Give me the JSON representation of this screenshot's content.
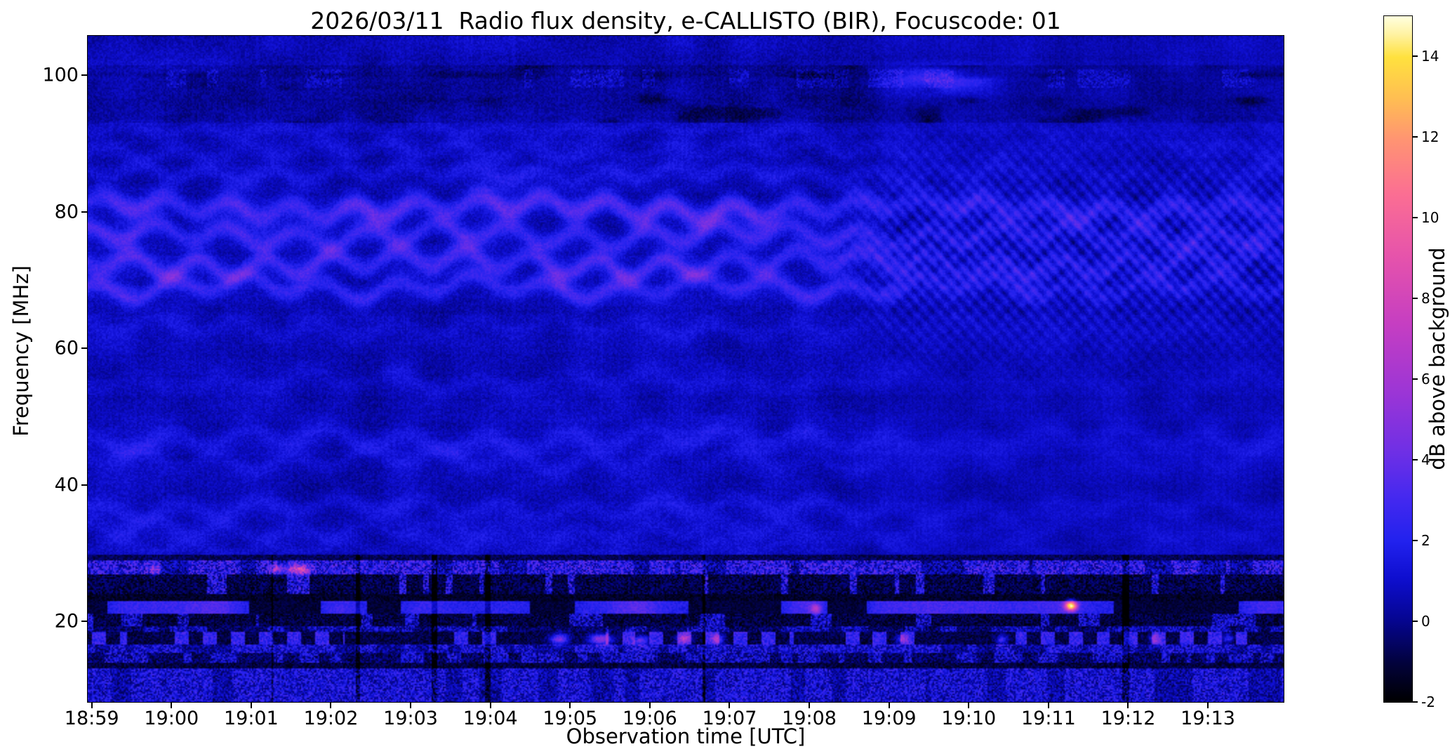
{
  "figure": {
    "title": "2026/03/11  Radio flux density, e-CALLISTO (BIR), Focuscode: 01",
    "date": "2026/03/11",
    "instrument": "e-CALLISTO (BIR)",
    "focuscode": "01"
  },
  "chart_data": {
    "type": "heatmap",
    "title": "2026/03/11  Radio flux density, e-CALLISTO (BIR), Focuscode: 01",
    "xlabel": "Observation time [UTC]",
    "ylabel": "Frequency [MHz]",
    "x_ticks": [
      "18:59",
      "19:00",
      "19:01",
      "19:02",
      "19:03",
      "19:04",
      "19:05",
      "19:06",
      "19:07",
      "19:08",
      "19:09",
      "19:10",
      "19:11",
      "19:12",
      "19:13"
    ],
    "x_tick_interval_s": 60,
    "time_range_s": [
      -3,
      897
    ],
    "y_ticks": [
      20,
      40,
      60,
      80,
      100
    ],
    "freq_range_mhz": [
      8.2,
      105.8
    ],
    "grid": false,
    "colorbar": {
      "label": "dB above background",
      "ticks": [
        -2,
        0,
        2,
        4,
        6,
        8,
        10,
        12,
        14
      ],
      "vmin": -2,
      "vmax": 15,
      "colormap": "gnuplot2",
      "stops": [
        {
          "p": 0.0,
          "c": "#000000"
        },
        {
          "p": 0.055,
          "c": "#02023a"
        },
        {
          "p": 0.118,
          "c": "#05058f"
        },
        {
          "p": 0.18,
          "c": "#0e0ecf"
        },
        {
          "p": 0.235,
          "c": "#2222ee"
        },
        {
          "p": 0.3,
          "c": "#4629ef"
        },
        {
          "p": 0.36,
          "c": "#6c2fe6"
        },
        {
          "p": 0.45,
          "c": "#9b35d6"
        },
        {
          "p": 0.55,
          "c": "#c53ec2"
        },
        {
          "p": 0.65,
          "c": "#e653ab"
        },
        {
          "p": 0.74,
          "c": "#fb6e93"
        },
        {
          "p": 0.82,
          "c": "#ff9472"
        },
        {
          "p": 0.88,
          "c": "#ffbe52"
        },
        {
          "p": 0.94,
          "c": "#ffe13e"
        },
        {
          "p": 0.975,
          "c": "#fff3a6"
        },
        {
          "p": 1.0,
          "c": "#ffffdf"
        }
      ]
    },
    "render": {
      "background_db": 0.6,
      "bands": [
        {
          "f": 80.6,
          "p": 2.6,
          "w": 1.15,
          "a1": 1.1,
          "n1": 19,
          "ph1": 0.5,
          "a2": 0.7,
          "n2": 3,
          "ph2": 1.2
        },
        {
          "f": 76.6,
          "p": 2.1,
          "w": 1.0,
          "a1": 1.2,
          "n1": 17,
          "ph1": 2.1,
          "a2": 0.6,
          "n2": 4,
          "ph2": 0.3
        },
        {
          "f": 72.5,
          "p": 2.2,
          "w": 1.0,
          "a1": 1.3,
          "n1": 18,
          "ph1": 4.0,
          "a2": 0.8,
          "n2": 3,
          "ph2": 2.5
        },
        {
          "f": 69.0,
          "p": 1.9,
          "w": 0.95,
          "a1": 1.1,
          "n1": 16,
          "ph1": 1.0,
          "a2": 0.7,
          "n2": 5,
          "ph2": 4.0
        },
        {
          "f": 85.6,
          "p": 0.85,
          "w": 0.9,
          "a1": 0.9,
          "n1": 18,
          "ph1": 3.2,
          "a2": 0.5,
          "n2": 4,
          "ph2": 1.0
        },
        {
          "f": 88.9,
          "p": 0.7,
          "w": 0.85,
          "a1": 0.8,
          "n1": 17,
          "ph1": 0.2,
          "a2": 0.5,
          "n2": 3,
          "ph2": 3.3
        },
        {
          "f": 92.1,
          "p": 0.55,
          "w": 0.8,
          "a1": 0.8,
          "n1": 16,
          "ph1": 5.0,
          "a2": 0.4,
          "n2": 4,
          "ph2": 2.0
        },
        {
          "f": 63.0,
          "p": 0.55,
          "w": 0.95,
          "a1": 1.0,
          "n1": 15,
          "ph1": 2.7,
          "a2": 0.5,
          "n2": 3,
          "ph2": 0.8
        },
        {
          "f": 55.2,
          "p": 0.5,
          "w": 1.0,
          "a1": 1.0,
          "n1": 14,
          "ph1": 4.4,
          "a2": 0.6,
          "n2": 4,
          "ph2": 2.9
        },
        {
          "f": 46.6,
          "p": 0.85,
          "w": 1.1,
          "a1": 1.1,
          "n1": 15,
          "ph1": 1.8,
          "a2": 0.7,
          "n2": 3,
          "ph2": 4.6
        },
        {
          "f": 43.6,
          "p": 0.65,
          "w": 0.95,
          "a1": 1.0,
          "n1": 16,
          "ph1": 3.6,
          "a2": 0.6,
          "n2": 4,
          "ph2": 1.4
        },
        {
          "f": 36.6,
          "p": 0.85,
          "w": 1.0,
          "a1": 1.0,
          "n1": 15,
          "ph1": 0.9,
          "a2": 0.6,
          "n2": 3,
          "ph2": 3.9
        },
        {
          "f": 33.4,
          "p": 0.6,
          "w": 0.9,
          "a1": 0.9,
          "n1": 17,
          "ph1": 2.2,
          "a2": 0.5,
          "n2": 4,
          "ph2": 0.6
        },
        {
          "f": 30.9,
          "p": 0.5,
          "w": 0.85,
          "a1": 0.8,
          "n1": 16,
          "ph1": 5.5,
          "a2": 0.4,
          "n2": 3,
          "ph2": 2.2
        }
      ],
      "ripple": {
        "start": 550,
        "full": 620,
        "cf": 74.5,
        "sig": 9.5,
        "p1t": 9.5,
        "p1f": 2.1,
        "a1": 0.75,
        "p2t": 14,
        "p2f": 2.8,
        "a2": 0.4
      },
      "top_band": {
        "f0": 93.0,
        "f1": 101.5,
        "dim": 0.4,
        "sf0": 98.3,
        "sf1": 100.8
      },
      "low_boundary_mhz": 29.8,
      "low_rows": [
        {
          "f0": 29.0,
          "f1": 29.8,
          "base": -0.7,
          "noise": 0.7,
          "mode": "plain"
        },
        {
          "f0": 26.9,
          "f1": 29.0,
          "base": 0.4,
          "noise": 1.5,
          "mode": "gate",
          "gp": 14,
          "gth": 0.32,
          "gg": 1.7
        },
        {
          "f0": 24.1,
          "f1": 26.9,
          "base": -0.9,
          "noise": 1.0,
          "mode": "gate",
          "gp": 8,
          "gth": 0.74,
          "gg": 2.6
        },
        {
          "f0": 22.9,
          "f1": 24.1,
          "base": -1.3,
          "noise": 0.6,
          "mode": "plain"
        },
        {
          "f0": 21.2,
          "f1": 22.9,
          "base": -1.0,
          "noise": 0.7,
          "mode": "blob",
          "gp": 30,
          "gth": 0.42,
          "gg": 3.4
        },
        {
          "f0": 19.3,
          "f1": 21.2,
          "base": -1.0,
          "noise": 0.9,
          "mode": "gate",
          "gp": 11,
          "gth": 0.6,
          "gg": 2.1
        },
        {
          "f0": 18.4,
          "f1": 19.3,
          "base": -0.5,
          "noise": 1.0,
          "mode": "gate",
          "gp": 9,
          "gth": 0.5,
          "gg": 1.4
        },
        {
          "f0": 16.7,
          "f1": 18.4,
          "base": -0.9,
          "noise": 0.8,
          "mode": "dash",
          "period": 21,
          "duty": 0.5,
          "amp": 3.0
        },
        {
          "f0": 15.3,
          "f1": 16.7,
          "base": 0.2,
          "noise": 1.2,
          "mode": "gate",
          "gp": 10,
          "gth": 0.38,
          "gg": 1.2
        },
        {
          "f0": 13.9,
          "f1": 15.3,
          "base": -0.5,
          "noise": 1.1,
          "mode": "gate",
          "gp": 8,
          "gth": 0.5,
          "gg": 1.6
        },
        {
          "f0": 13.2,
          "f1": 13.9,
          "base": -1.0,
          "noise": 0.8,
          "mode": "plain"
        },
        {
          "f0": 8.2,
          "f1": 13.2,
          "base": 0.4,
          "noise": 1.3,
          "mode": "gate",
          "gp": 13,
          "gth": 0.3,
          "gg": 1.0
        }
      ],
      "spots": [
        {
          "t": 47,
          "f": 27.6,
          "st": 3,
          "sf": 0.45,
          "amp": 3.5
        },
        {
          "t": 140,
          "f": 27.7,
          "st": 4,
          "sf": 0.5,
          "amp": 4.5
        },
        {
          "t": 156,
          "f": 27.6,
          "st": 6,
          "sf": 0.5,
          "amp": 6.5
        },
        {
          "t": 352,
          "f": 17.4,
          "st": 5,
          "sf": 0.55,
          "amp": 5.5
        },
        {
          "t": 383,
          "f": 17.4,
          "st": 6,
          "sf": 0.55,
          "amp": 6.2
        },
        {
          "t": 413,
          "f": 17.2,
          "st": 4,
          "sf": 0.5,
          "amp": 5.0
        },
        {
          "t": 446,
          "f": 17.5,
          "st": 4,
          "sf": 0.5,
          "amp": 4.6
        },
        {
          "t": 471,
          "f": 17.4,
          "st": 3.5,
          "sf": 0.5,
          "amp": 4.2
        },
        {
          "t": 545,
          "f": 21.9,
          "st": 3,
          "sf": 0.5,
          "amp": 4.2
        },
        {
          "t": 610,
          "f": 17.4,
          "st": 3,
          "sf": 0.5,
          "amp": 3.8
        },
        {
          "t": 685,
          "f": 17.3,
          "st": 3,
          "sf": 0.5,
          "amp": 3.6
        },
        {
          "t": 737,
          "f": 22.3,
          "st": 3.2,
          "sf": 0.5,
          "amp": 12.5
        },
        {
          "t": 800,
          "f": 17.4,
          "st": 3,
          "sf": 0.5,
          "amp": 3.4
        },
        {
          "t": 855,
          "f": 17.5,
          "st": 3,
          "sf": 0.5,
          "amp": 3.2
        },
        {
          "t": 634,
          "f": 99.3,
          "st": 26,
          "sf": 1.4,
          "amp": 2.6,
          "q": true
        }
      ]
    }
  }
}
